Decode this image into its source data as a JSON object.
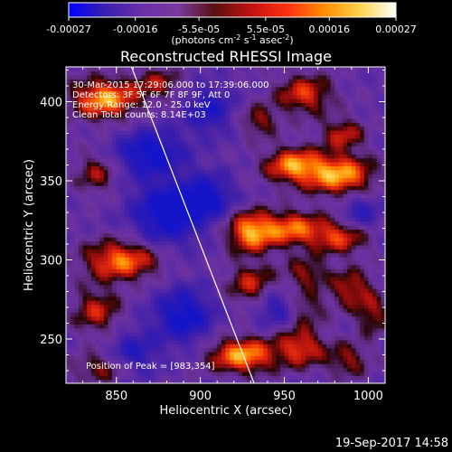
{
  "colorbar": {
    "tick_labels": [
      "-0.00027",
      "-0.00016",
      "-5.5e-05",
      "5.5e-05",
      "0.00016",
      "0.00027"
    ],
    "tick_values": [
      -0.00027,
      -0.00016,
      -5.5e-05,
      5.5e-05,
      0.00016,
      0.00027
    ],
    "range": [
      -0.00027,
      0.00027
    ],
    "units_prefix": "(photons cm",
    "units_sup1": "-2",
    "units_mid1": " s",
    "units_sup2": "-1",
    "units_mid2": " asec",
    "units_sup3": "-2",
    "units_suffix": ")",
    "colors": [
      "#0000ff",
      "#3a1fb0",
      "#6a2ea8",
      "#7a3a9e",
      "#5a1010",
      "#c01010",
      "#ff3010",
      "#ff8a00",
      "#ffd24a",
      "#ffffff"
    ]
  },
  "chart_data": {
    "type": "heatmap",
    "title": "Reconstructed RHESSI Image",
    "xlabel": "Heliocentric X (arcsec)",
    "ylabel": "Heliocentric Y (arcsec)",
    "xlim": [
      820,
      1010
    ],
    "ylim": [
      222,
      422
    ],
    "x_ticks": [
      850,
      900,
      950,
      1000
    ],
    "y_ticks": [
      250,
      300,
      350,
      400
    ],
    "x_tick_labels": [
      "850",
      "900",
      "950",
      "1000"
    ],
    "y_tick_labels": [
      "250",
      "300",
      "350",
      "400"
    ],
    "limb_line": [
      [
        859,
        422
      ],
      [
        932,
        222
      ]
    ],
    "annotations": [
      "30-Mar-2015 17:29:06.000 to 17:39:06.000",
      "Detectors: 3F 5F 6F 7F 8F 9F, Att 0",
      "Energy Range: 12.0 - 25.0 keV",
      "Clean    Total counts: 8.14E+03"
    ],
    "peak_label": "Position of Peak = [983,354]",
    "peak": [
      983,
      354
    ],
    "blobs": [
      {
        "x": 843,
        "y": 402,
        "amp": 1.0,
        "sx": 14,
        "sy": 9
      },
      {
        "x": 875,
        "y": 412,
        "amp": 0.5,
        "sx": 10,
        "sy": 7
      },
      {
        "x": 838,
        "y": 355,
        "amp": 0.5,
        "sx": 9,
        "sy": 9
      },
      {
        "x": 853,
        "y": 300,
        "amp": 0.9,
        "sx": 16,
        "sy": 9
      },
      {
        "x": 838,
        "y": 268,
        "amp": 0.6,
        "sx": 10,
        "sy": 10
      },
      {
        "x": 843,
        "y": 232,
        "amp": 0.5,
        "sx": 14,
        "sy": 7
      },
      {
        "x": 962,
        "y": 405,
        "amp": 0.7,
        "sx": 12,
        "sy": 9
      },
      {
        "x": 935,
        "y": 388,
        "amp": 0.5,
        "sx": 8,
        "sy": 7
      },
      {
        "x": 983,
        "y": 354,
        "amp": 1.0,
        "sx": 14,
        "sy": 9
      },
      {
        "x": 955,
        "y": 360,
        "amp": 0.9,
        "sx": 12,
        "sy": 8
      },
      {
        "x": 985,
        "y": 380,
        "amp": 0.6,
        "sx": 9,
        "sy": 7
      },
      {
        "x": 930,
        "y": 318,
        "amp": 1.0,
        "sx": 10,
        "sy": 9
      },
      {
        "x": 955,
        "y": 320,
        "amp": 0.8,
        "sx": 12,
        "sy": 8
      },
      {
        "x": 983,
        "y": 315,
        "amp": 0.7,
        "sx": 12,
        "sy": 8
      },
      {
        "x": 930,
        "y": 285,
        "amp": 0.6,
        "sx": 10,
        "sy": 9
      },
      {
        "x": 963,
        "y": 292,
        "amp": 0.5,
        "sx": 9,
        "sy": 7
      },
      {
        "x": 990,
        "y": 282,
        "amp": 0.6,
        "sx": 9,
        "sy": 9
      },
      {
        "x": 1003,
        "y": 265,
        "amp": 0.5,
        "sx": 7,
        "sy": 9
      },
      {
        "x": 925,
        "y": 240,
        "amp": 1.0,
        "sx": 14,
        "sy": 8
      },
      {
        "x": 960,
        "y": 245,
        "amp": 0.7,
        "sx": 10,
        "sy": 9
      },
      {
        "x": 988,
        "y": 237,
        "amp": 0.5,
        "sx": 9,
        "sy": 8
      },
      {
        "x": 963,
        "y": 270,
        "amp": 0.4,
        "sx": 8,
        "sy": 8
      },
      {
        "x": 880,
        "y": 330,
        "amp": -0.9,
        "sx": 14,
        "sy": 14
      },
      {
        "x": 870,
        "y": 368,
        "amp": -0.8,
        "sx": 14,
        "sy": 10
      },
      {
        "x": 890,
        "y": 265,
        "amp": -0.8,
        "sx": 12,
        "sy": 12
      },
      {
        "x": 905,
        "y": 395,
        "amp": -0.6,
        "sx": 10,
        "sy": 10
      },
      {
        "x": 860,
        "y": 240,
        "amp": -0.6,
        "sx": 10,
        "sy": 10
      },
      {
        "x": 995,
        "y": 330,
        "amp": -0.5,
        "sx": 8,
        "sy": 8
      },
      {
        "x": 945,
        "y": 270,
        "amp": -0.5,
        "sx": 8,
        "sy": 8
      },
      {
        "x": 905,
        "y": 340,
        "amp": -0.7,
        "sx": 10,
        "sy": 10
      }
    ]
  },
  "footer": {
    "timestamp": "19-Sep-2017 14:58"
  }
}
